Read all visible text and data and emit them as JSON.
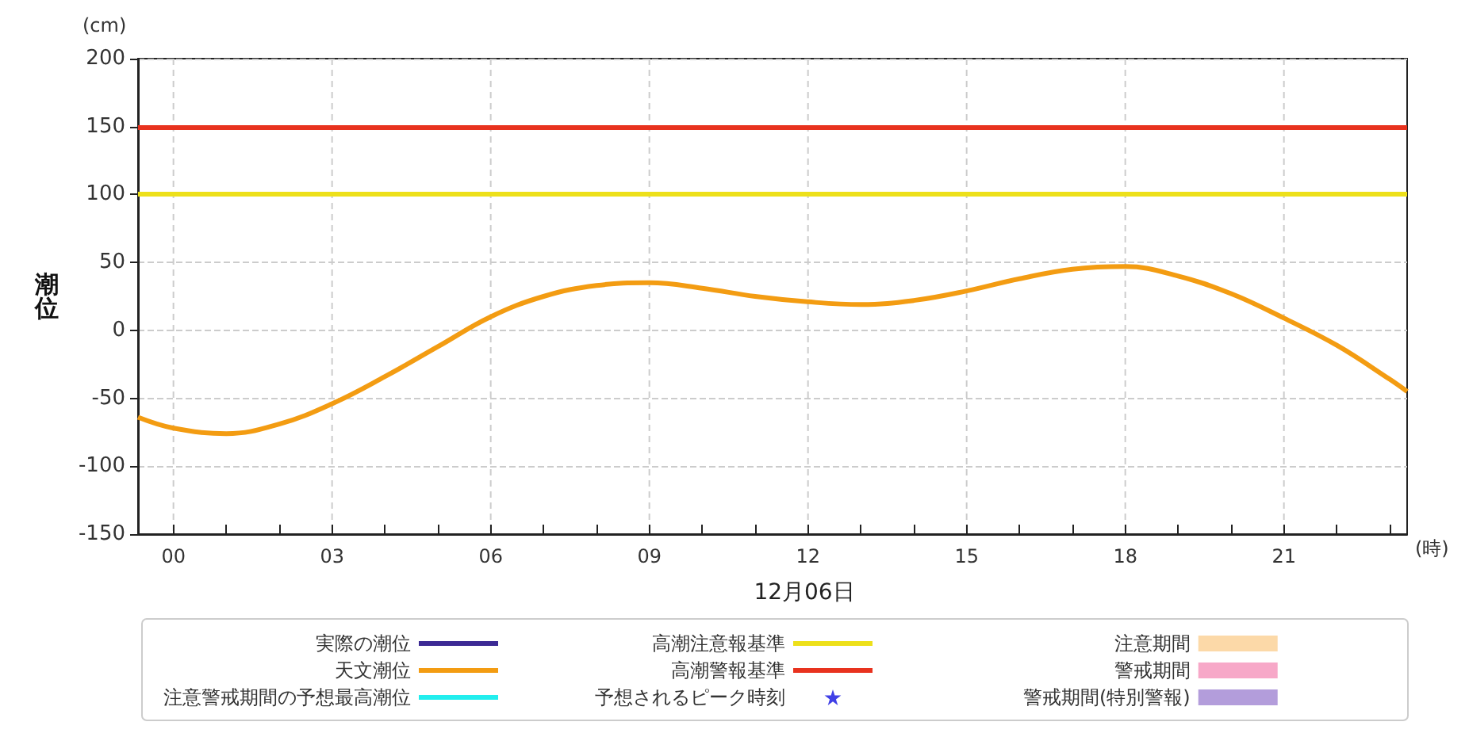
{
  "chart_data": {
    "type": "line",
    "xlabel": "12月06日",
    "ylabel": "潮位",
    "annotations": [
      "(cm)",
      "(時)"
    ],
    "x": [
      -0.67,
      0,
      1,
      2,
      3,
      4,
      5,
      6,
      7,
      8,
      9,
      10,
      11,
      12,
      13,
      14,
      15,
      16,
      17,
      18,
      19,
      20,
      21,
      22,
      23,
      23.33
    ],
    "series": [
      {
        "name": "実際の潮位",
        "color": "#3c2a94",
        "values": [
          null,
          null,
          null,
          null,
          null,
          null,
          null,
          null,
          null,
          null,
          null,
          null,
          null,
          null,
          null,
          null,
          null,
          null,
          null,
          null,
          null,
          null,
          null,
          null,
          null,
          null
        ]
      },
      {
        "name": "天文潮位",
        "color": "#f39c12",
        "values": [
          -64,
          -72,
          -76,
          -69,
          -54,
          -34,
          -12,
          10,
          25,
          33,
          35,
          31,
          25,
          21,
          19,
          22,
          29,
          38,
          45,
          47,
          40,
          27,
          9,
          -11,
          -36,
          -45
        ]
      },
      {
        "name": "注意警戒期間の予想最高潮位",
        "color": "#22eeee",
        "values": [
          null,
          null,
          null,
          null,
          null,
          null,
          null,
          null,
          null,
          null,
          null,
          null,
          null,
          null,
          null,
          null,
          null,
          null,
          null,
          null,
          null,
          null,
          null,
          null,
          null,
          null
        ]
      },
      {
        "name": "予想されるピーク時刻",
        "type": "scatter",
        "marker": "star",
        "color": "#1010e0",
        "values": [
          null,
          null,
          null,
          null,
          null,
          null,
          null,
          null,
          null,
          null,
          null,
          null,
          null,
          null,
          null,
          null,
          null,
          null,
          null,
          null,
          null,
          null,
          null,
          null,
          null,
          null
        ]
      },
      {
        "name": "注意期間",
        "type": "bar",
        "color": "#fcd9a8",
        "values": [
          null,
          null,
          null,
          null,
          null,
          null,
          null,
          null,
          null,
          null,
          null,
          null,
          null,
          null,
          null,
          null,
          null,
          null,
          null,
          null,
          null,
          null,
          null,
          null,
          null,
          null
        ]
      },
      {
        "name": "警戒期間",
        "type": "bar",
        "color": "#f7a8c8",
        "values": [
          null,
          null,
          null,
          null,
          null,
          null,
          null,
          null,
          null,
          null,
          null,
          null,
          null,
          null,
          null,
          null,
          null,
          null,
          null,
          null,
          null,
          null,
          null,
          null,
          null,
          null
        ]
      },
      {
        "name": "警戒期間(特別警報)",
        "type": "bar",
        "color": "#b39ddb",
        "values": [
          null,
          null,
          null,
          null,
          null,
          null,
          null,
          null,
          null,
          null,
          null,
          null,
          null,
          null,
          null,
          null,
          null,
          null,
          null,
          null,
          null,
          null,
          null,
          null,
          null,
          null
        ]
      }
    ],
    "ref_lines": [
      {
        "axis": "y",
        "value": 100,
        "label": "高潮注意報基準",
        "color": "#ede01a"
      },
      {
        "axis": "y",
        "value": 150,
        "label": "高潮警報基準",
        "color": "#e8321e"
      }
    ],
    "xlim": [
      -0.67,
      23.33
    ],
    "xticks": [
      {
        "value": 0,
        "label": "00"
      },
      {
        "value": 1,
        "label": null
      },
      {
        "value": 2,
        "label": null
      },
      {
        "value": 3,
        "label": "03"
      },
      {
        "value": 4,
        "label": null
      },
      {
        "value": 5,
        "label": null
      },
      {
        "value": 6,
        "label": "06"
      },
      {
        "value": 7,
        "label": null
      },
      {
        "value": 8,
        "label": null
      },
      {
        "value": 9,
        "label": "09"
      },
      {
        "value": 10,
        "label": null
      },
      {
        "value": 11,
        "label": null
      },
      {
        "value": 12,
        "label": "12"
      },
      {
        "value": 13,
        "label": null
      },
      {
        "value": 14,
        "label": null
      },
      {
        "value": 15,
        "label": "15"
      },
      {
        "value": 16,
        "label": null
      },
      {
        "value": 17,
        "label": null
      },
      {
        "value": 18,
        "label": "18"
      },
      {
        "value": 19,
        "label": null
      },
      {
        "value": 20,
        "label": null
      },
      {
        "value": 21,
        "label": "21"
      },
      {
        "value": 22,
        "label": null
      },
      {
        "value": 23,
        "label": null
      }
    ],
    "ylim": [
      -150,
      200
    ],
    "yticks": [
      -150,
      -100,
      -50,
      0,
      50,
      100,
      150,
      200
    ],
    "grid": true,
    "legend": "bottom",
    "marker": "none",
    "line_style": "solid"
  }
}
